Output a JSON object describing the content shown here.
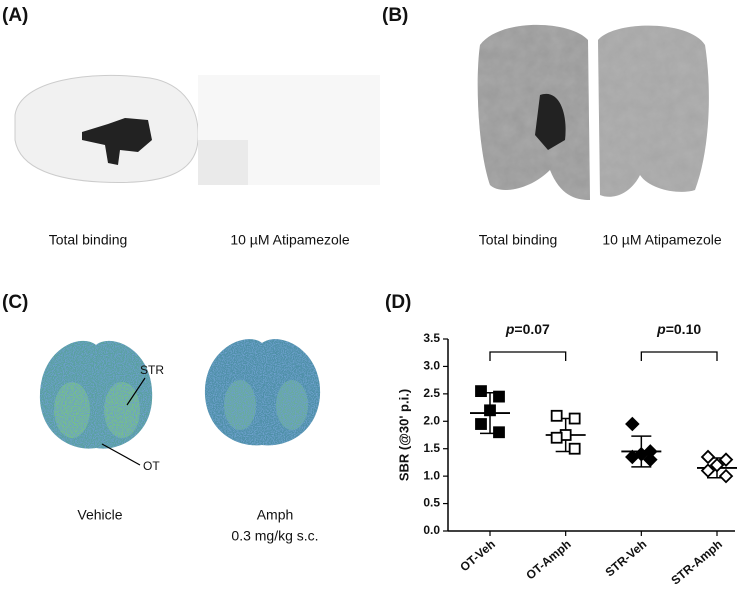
{
  "panels": {
    "a": {
      "label": "(A)",
      "captions": [
        "Total binding",
        "10 µM Atipamezole"
      ]
    },
    "b": {
      "label": "(B)",
      "captions": [
        "Total binding",
        "10 µM Atipamezole"
      ]
    },
    "c": {
      "label": "(C)",
      "annotations": [
        "STR",
        "OT"
      ],
      "captions": [
        "Vehicle",
        "Amph",
        "0.3 mg/kg s.c."
      ]
    }
  },
  "chart_data": {
    "type": "dot",
    "label": "(D)",
    "y_label": "SBR (@30' p.i.)",
    "categories": [
      "OT-Veh",
      "OT-Amph",
      "STR-Veh",
      "STR-Amph"
    ],
    "markers": [
      "square-filled",
      "square-open",
      "diamond-filled",
      "diamond-open"
    ],
    "points": [
      [
        2.55,
        2.45,
        2.2,
        1.95,
        1.8
      ],
      [
        2.1,
        2.05,
        1.75,
        1.7,
        1.5
      ],
      [
        1.95,
        1.45,
        1.4,
        1.35,
        1.3
      ],
      [
        1.35,
        1.3,
        1.2,
        1.1,
        1.0
      ]
    ],
    "mean": [
      2.15,
      1.75,
      1.45,
      1.15
    ],
    "sd": [
      0.37,
      0.3,
      0.28,
      0.18
    ],
    "ylim": [
      0,
      3.5
    ],
    "yticks": [
      {
        "value": 0,
        "label": "0.0"
      },
      {
        "value": 0.5,
        "label": "0.5"
      },
      {
        "value": 1,
        "label": "1.0"
      },
      {
        "value": 1.5,
        "label": "1.5"
      },
      {
        "value": 2,
        "label": "2.0"
      },
      {
        "value": 2.5,
        "label": "2.5"
      },
      {
        "value": 3,
        "label": "3.0"
      },
      {
        "value": 3.5,
        "label": "3.5"
      }
    ],
    "comparisons": [
      {
        "between": [
          0,
          1
        ],
        "italic": "p",
        "rest": "=0.07"
      },
      {
        "between": [
          2,
          3
        ],
        "italic": "p",
        "rest": "=0.10"
      }
    ]
  }
}
